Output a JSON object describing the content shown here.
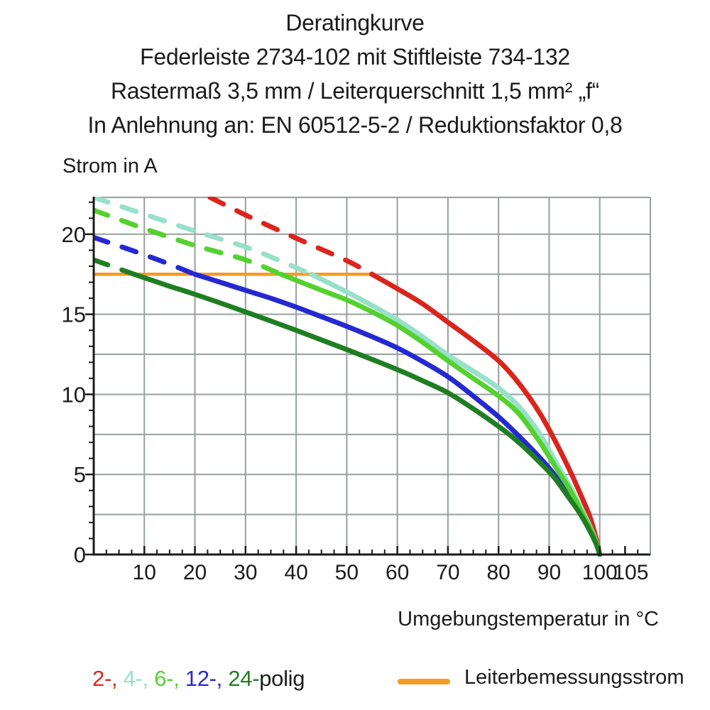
{
  "title": {
    "line1": "Deratingkurve",
    "line2": "Federleiste 2734-102 mit Stiftleiste 734-132",
    "line3": "Rastermaß 3,5 mm / Leiterquerschnitt 1,5 mm² „f“",
    "line4": "In Anlehnung an: EN 60512-5-2 / Reduktionsfaktor 0,8"
  },
  "colors": {
    "red": "#da251d",
    "cyan": "#97e0c9",
    "green_light": "#55d12f",
    "blue": "#2529d1",
    "green_dark": "#1f7e22",
    "orange": "#f59b23",
    "grid": "#999f9f",
    "axis": "#1b1b1b"
  },
  "legend_poles": {
    "segments": [
      {
        "text": "2-, ",
        "color": "#da251d"
      },
      {
        "text": "4-, ",
        "color": "#97e0c9"
      },
      {
        "text": "6-, ",
        "color": "#55d12f"
      },
      {
        "text": "12-, ",
        "color": "#2529d1"
      },
      {
        "text": "24-",
        "color": "#1f7e22"
      },
      {
        "text": "polig",
        "color": "#1b1b1b"
      }
    ]
  },
  "chart_data": {
    "type": "line",
    "title": "Deratingkurve Federleiste 2734-102 mit Stiftleiste 734-132",
    "xlabel": "Umgebungstemperatur in °C",
    "ylabel": "Strom in A",
    "xlim": [
      0,
      110
    ],
    "ylim": [
      0,
      22.3
    ],
    "grid": true,
    "x_gridlines": [
      10,
      20,
      30,
      40,
      50,
      60,
      70,
      80,
      90,
      100,
      110
    ],
    "y_gridlines": [
      2.5,
      5,
      7.5,
      10,
      12.5,
      15,
      17.5,
      20
    ],
    "x_minor_step": 2.5,
    "y_minor_step": 1,
    "x_ticks": [
      {
        "v": 10,
        "label": "10",
        "dx": 0
      },
      {
        "v": 20,
        "label": "20",
        "dx": 0
      },
      {
        "v": 30,
        "label": "30",
        "dx": 0
      },
      {
        "v": 40,
        "label": "40",
        "dx": 0
      },
      {
        "v": 50,
        "label": "50",
        "dx": 0
      },
      {
        "v": 60,
        "label": "60",
        "dx": 0
      },
      {
        "v": 70,
        "label": "70",
        "dx": 0
      },
      {
        "v": 80,
        "label": "80",
        "dx": 0
      },
      {
        "v": 90,
        "label": "90",
        "dx": 0
      },
      {
        "v": 100,
        "label": "100",
        "dx": 0
      },
      {
        "v": 105,
        "label": "105",
        "dx": 8
      }
    ],
    "y_ticks": [
      {
        "v": 0,
        "label": "0"
      },
      {
        "v": 5,
        "label": "5"
      },
      {
        "v": 10,
        "label": "10"
      },
      {
        "v": 15,
        "label": "15"
      },
      {
        "v": 20,
        "label": "20"
      }
    ],
    "rated_current": {
      "label": "Leiterbemessungsstrom",
      "value": 17.5,
      "x_range": [
        0,
        55
      ],
      "color": "#f59b23"
    },
    "dash_pattern": "21 21",
    "series": [
      {
        "name": "2-polig",
        "color": "#da251d",
        "dashed": [
          [
            23,
            22.3
          ],
          [
            30,
            21.2
          ],
          [
            40,
            19.75
          ],
          [
            50,
            18.35
          ],
          [
            55,
            17.5
          ]
        ],
        "solid": [
          [
            55,
            17.5
          ],
          [
            60,
            16.6
          ],
          [
            65,
            15.65
          ],
          [
            70,
            14.5
          ],
          [
            75,
            13.35
          ],
          [
            80,
            12.1
          ],
          [
            84,
            10.7
          ],
          [
            88,
            8.9
          ],
          [
            91,
            7.2
          ],
          [
            94,
            5.3
          ],
          [
            96,
            3.9
          ],
          [
            98,
            2.4
          ],
          [
            99.3,
            1.0
          ],
          [
            100,
            0
          ]
        ]
      },
      {
        "name": "4-polig",
        "color": "#97e0c9",
        "dashed": [
          [
            0,
            22.3
          ],
          [
            10,
            21.25
          ],
          [
            20,
            20.2
          ],
          [
            30,
            19.2
          ],
          [
            36,
            18.45
          ],
          [
            43,
            17.5
          ]
        ],
        "solid": [
          [
            43,
            17.5
          ],
          [
            50,
            16.4
          ],
          [
            55,
            15.55
          ],
          [
            60,
            14.65
          ],
          [
            65,
            13.6
          ],
          [
            70,
            12.45
          ],
          [
            75,
            11.45
          ],
          [
            80,
            10.4
          ],
          [
            84,
            9.25
          ],
          [
            88,
            7.6
          ],
          [
            91,
            5.95
          ],
          [
            94,
            4.3
          ],
          [
            96,
            3.1
          ],
          [
            98,
            1.8
          ],
          [
            99.3,
            0.8
          ],
          [
            100,
            0
          ]
        ]
      },
      {
        "name": "12-polig",
        "color": "#2529d1",
        "dashed": [
          [
            0,
            19.8
          ],
          [
            7,
            19.05
          ],
          [
            14,
            18.25
          ],
          [
            20,
            17.5
          ]
        ],
        "solid": [
          [
            20,
            17.5
          ],
          [
            25,
            17.0
          ],
          [
            30,
            16.5
          ],
          [
            35,
            16.0
          ],
          [
            40,
            15.45
          ],
          [
            45,
            14.85
          ],
          [
            50,
            14.25
          ],
          [
            55,
            13.6
          ],
          [
            60,
            12.9
          ],
          [
            65,
            12.05
          ],
          [
            70,
            11.1
          ],
          [
            75,
            9.9
          ],
          [
            80,
            8.6
          ],
          [
            84,
            7.4
          ],
          [
            88,
            6.1
          ],
          [
            91,
            5.0
          ],
          [
            94,
            3.6
          ],
          [
            96,
            2.7
          ],
          [
            98,
            1.6
          ],
          [
            99.3,
            0.7
          ],
          [
            100,
            0
          ]
        ]
      },
      {
        "name": "6-polig",
        "color": "#55d12f",
        "dashed": [
          [
            0,
            21.5
          ],
          [
            10,
            20.35
          ],
          [
            20,
            19.3
          ],
          [
            30,
            18.4
          ],
          [
            37,
            17.5
          ]
        ],
        "solid": [
          [
            37,
            17.5
          ],
          [
            45,
            16.5
          ],
          [
            50,
            15.9
          ],
          [
            55,
            15.15
          ],
          [
            60,
            14.3
          ],
          [
            65,
            13.25
          ],
          [
            70,
            12.1
          ],
          [
            75,
            11.0
          ],
          [
            80,
            9.9
          ],
          [
            84,
            8.8
          ],
          [
            88,
            7.1
          ],
          [
            91,
            5.6
          ],
          [
            94,
            4.1
          ],
          [
            96,
            2.9
          ],
          [
            98,
            1.7
          ],
          [
            99.3,
            0.75
          ],
          [
            100,
            0
          ]
        ]
      },
      {
        "name": "24-polig",
        "color": "#1f7e22",
        "dashed": [
          [
            0,
            18.4
          ],
          [
            8,
            17.5
          ]
        ],
        "solid": [
          [
            8,
            17.5
          ],
          [
            15,
            16.75
          ],
          [
            20,
            16.25
          ],
          [
            30,
            15.15
          ],
          [
            40,
            14.0
          ],
          [
            50,
            12.8
          ],
          [
            60,
            11.55
          ],
          [
            65,
            10.85
          ],
          [
            70,
            10.1
          ],
          [
            75,
            9.1
          ],
          [
            80,
            8.0
          ],
          [
            84,
            7.0
          ],
          [
            88,
            5.8
          ],
          [
            91,
            4.8
          ],
          [
            94,
            3.5
          ],
          [
            96,
            2.6
          ],
          [
            98,
            1.5
          ],
          [
            99.3,
            0.65
          ],
          [
            100,
            0
          ]
        ]
      }
    ],
    "legend_entries": [
      "2-polig",
      "4-polig",
      "6-polig",
      "12-polig",
      "24-polig",
      "Leiterbemessungsstrom"
    ],
    "legend_position": "bottom"
  }
}
